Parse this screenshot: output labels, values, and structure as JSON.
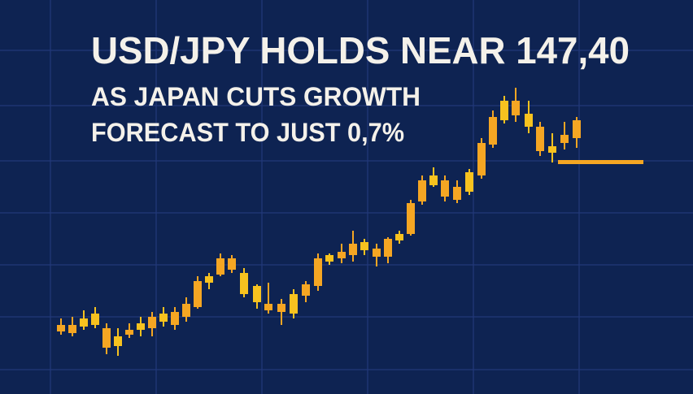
{
  "headline": "USD/JPY HOLDS NEAR 147,40",
  "subheadline": [
    "AS JAPAN CUTS GROWTH",
    "FORECAST TO JUST 0,7%"
  ]
}
